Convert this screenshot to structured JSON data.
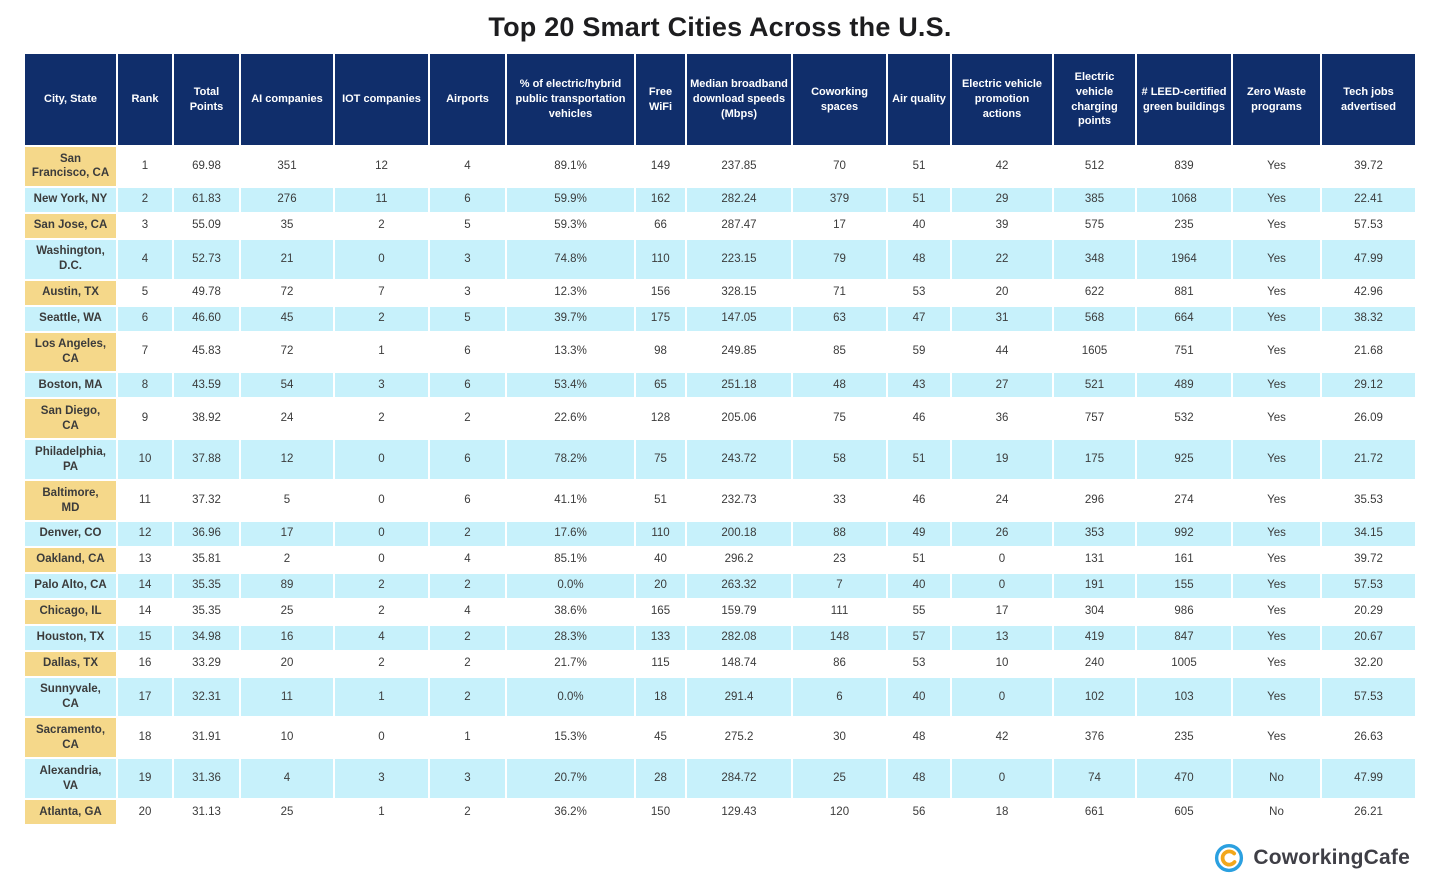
{
  "title": "Top 20 Smart Cities Across the U.S.",
  "footer": {
    "brand": "CoworkingCafe"
  },
  "colors": {
    "header_navy": "#102e6b",
    "city_column_tan": "#f5d88a",
    "stripe_cyan": "#c7f1fb",
    "title_text": "#1d1d1f",
    "body_text": "#3b3b3b",
    "logo_blue": "#2ba0e0",
    "logo_orange": "#f2a71b"
  },
  "chart_data": {
    "type": "table",
    "title": "Top 20 Smart Cities Across the U.S.",
    "columns": [
      "City, State",
      "Rank",
      "Total Points",
      "AI companies",
      "IOT companies",
      "Airports",
      "% of electric/hybrid public transportation vehicles",
      "Free WiFi",
      "Median broadband download speeds (Mbps)",
      "Coworking spaces",
      "Air quality",
      "Electric vehicle promotion actions",
      "Electric vehicle charging points",
      "# LEED-certified green buildings",
      "Zero Waste programs",
      "Tech jobs advertised"
    ],
    "rows": [
      [
        "San\nFrancisco, CA",
        "1",
        "69.98",
        "351",
        "12",
        "4",
        "89.1%",
        "149",
        "237.85",
        "70",
        "51",
        "42",
        "512",
        "839",
        "Yes",
        "39.72"
      ],
      [
        "New York, NY",
        "2",
        "61.83",
        "276",
        "11",
        "6",
        "59.9%",
        "162",
        "282.24",
        "379",
        "51",
        "29",
        "385",
        "1068",
        "Yes",
        "22.41"
      ],
      [
        "San Jose, CA",
        "3",
        "55.09",
        "35",
        "2",
        "5",
        "59.3%",
        "66",
        "287.47",
        "17",
        "40",
        "39",
        "575",
        "235",
        "Yes",
        "57.53"
      ],
      [
        "Washington,\nD.C.",
        "4",
        "52.73",
        "21",
        "0",
        "3",
        "74.8%",
        "110",
        "223.15",
        "79",
        "48",
        "22",
        "348",
        "1964",
        "Yes",
        "47.99"
      ],
      [
        "Austin, TX",
        "5",
        "49.78",
        "72",
        "7",
        "3",
        "12.3%",
        "156",
        "328.15",
        "71",
        "53",
        "20",
        "622",
        "881",
        "Yes",
        "42.96"
      ],
      [
        "Seattle, WA",
        "6",
        "46.60",
        "45",
        "2",
        "5",
        "39.7%",
        "175",
        "147.05",
        "63",
        "47",
        "31",
        "568",
        "664",
        "Yes",
        "38.32"
      ],
      [
        "Los Angeles,\nCA",
        "7",
        "45.83",
        "72",
        "1",
        "6",
        "13.3%",
        "98",
        "249.85",
        "85",
        "59",
        "44",
        "1605",
        "751",
        "Yes",
        "21.68"
      ],
      [
        "Boston, MA",
        "8",
        "43.59",
        "54",
        "3",
        "6",
        "53.4%",
        "65",
        "251.18",
        "48",
        "43",
        "27",
        "521",
        "489",
        "Yes",
        "29.12"
      ],
      [
        "San Diego,\nCA",
        "9",
        "38.92",
        "24",
        "2",
        "2",
        "22.6%",
        "128",
        "205.06",
        "75",
        "46",
        "36",
        "757",
        "532",
        "Yes",
        "26.09"
      ],
      [
        "Philadelphia,\nPA",
        "10",
        "37.88",
        "12",
        "0",
        "6",
        "78.2%",
        "75",
        "243.72",
        "58",
        "51",
        "19",
        "175",
        "925",
        "Yes",
        "21.72"
      ],
      [
        "Baltimore,\nMD",
        "11",
        "37.32",
        "5",
        "0",
        "6",
        "41.1%",
        "51",
        "232.73",
        "33",
        "46",
        "24",
        "296",
        "274",
        "Yes",
        "35.53"
      ],
      [
        "Denver, CO",
        "12",
        "36.96",
        "17",
        "0",
        "2",
        "17.6%",
        "110",
        "200.18",
        "88",
        "49",
        "26",
        "353",
        "992",
        "Yes",
        "34.15"
      ],
      [
        "Oakland, CA",
        "13",
        "35.81",
        "2",
        "0",
        "4",
        "85.1%",
        "40",
        "296.2",
        "23",
        "51",
        "0",
        "131",
        "161",
        "Yes",
        "39.72"
      ],
      [
        "Palo Alto, CA",
        "14",
        "35.35",
        "89",
        "2",
        "2",
        "0.0%",
        "20",
        "263.32",
        "7",
        "40",
        "0",
        "191",
        "155",
        "Yes",
        "57.53"
      ],
      [
        "Chicago, IL",
        "14",
        "35.35",
        "25",
        "2",
        "4",
        "38.6%",
        "165",
        "159.79",
        "111",
        "55",
        "17",
        "304",
        "986",
        "Yes",
        "20.29"
      ],
      [
        "Houston, TX",
        "15",
        "34.98",
        "16",
        "4",
        "2",
        "28.3%",
        "133",
        "282.08",
        "148",
        "57",
        "13",
        "419",
        "847",
        "Yes",
        "20.67"
      ],
      [
        "Dallas, TX",
        "16",
        "33.29",
        "20",
        "2",
        "2",
        "21.7%",
        "115",
        "148.74",
        "86",
        "53",
        "10",
        "240",
        "1005",
        "Yes",
        "32.20"
      ],
      [
        "Sunnyvale,\nCA",
        "17",
        "32.31",
        "11",
        "1",
        "2",
        "0.0%",
        "18",
        "291.4",
        "6",
        "40",
        "0",
        "102",
        "103",
        "Yes",
        "57.53"
      ],
      [
        "Sacramento,\nCA",
        "18",
        "31.91",
        "10",
        "0",
        "1",
        "15.3%",
        "45",
        "275.2",
        "30",
        "48",
        "42",
        "376",
        "235",
        "Yes",
        "26.63"
      ],
      [
        "Alexandria,\nVA",
        "19",
        "31.36",
        "4",
        "3",
        "3",
        "20.7%",
        "28",
        "284.72",
        "25",
        "48",
        "0",
        "74",
        "470",
        "No",
        "47.99"
      ],
      [
        "Atlanta, GA",
        "20",
        "31.13",
        "25",
        "1",
        "2",
        "36.2%",
        "150",
        "129.43",
        "120",
        "56",
        "18",
        "661",
        "605",
        "No",
        "26.21"
      ]
    ]
  }
}
